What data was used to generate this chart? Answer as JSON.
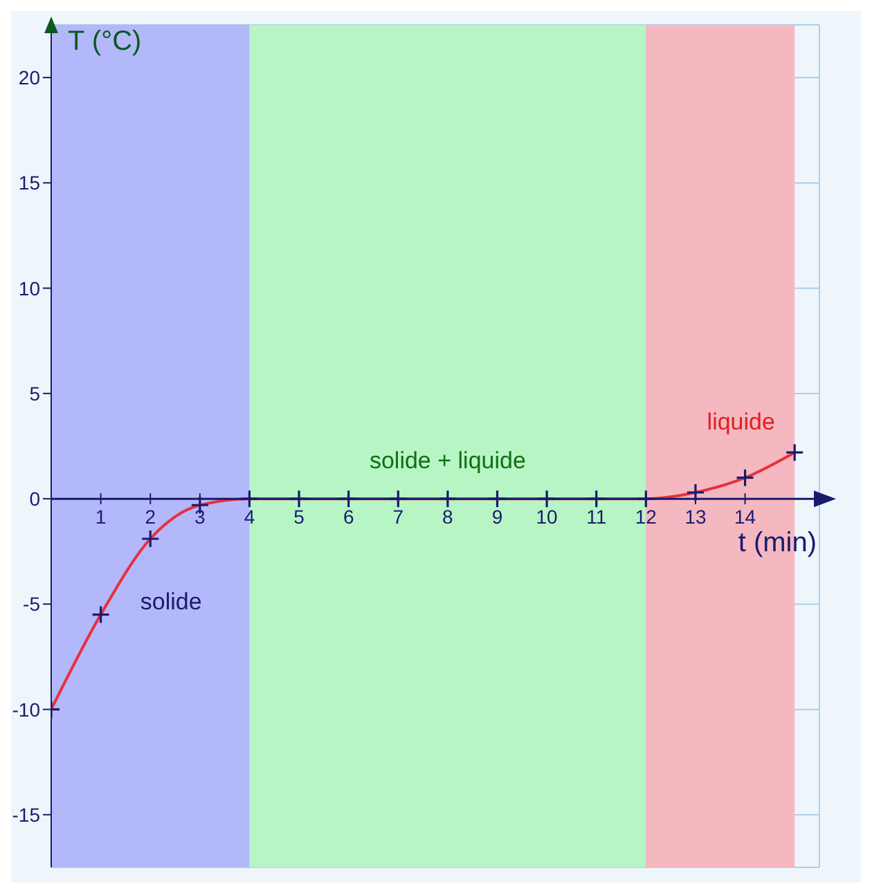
{
  "chart_data": {
    "type": "line",
    "ylabel": "T (°C)",
    "xlabel": "t  (min)",
    "x": [
      0,
      1,
      2,
      3,
      4,
      5,
      6,
      7,
      8,
      9,
      10,
      11,
      12,
      13,
      14,
      15
    ],
    "series": [
      {
        "color": "#e8303a",
        "values": [
          -10,
          -5.5,
          -1.9,
          -0.3,
          0,
          0,
          0,
          0,
          0,
          0,
          0,
          0,
          0,
          0.3,
          1,
          2.2
        ]
      }
    ],
    "xlim": [
      0,
      15.5
    ],
    "ylim": [
      -17.5,
      22.5
    ],
    "xticks": [
      {
        "value": 0,
        "label": null
      },
      1,
      2,
      3,
      4,
      5,
      6,
      7,
      8,
      9,
      10,
      11,
      12,
      13,
      14
    ],
    "yticks": [
      -15,
      -10,
      -5,
      0,
      5,
      10,
      15,
      20
    ],
    "bands": [
      {
        "axis": "x",
        "from": 0,
        "to": 4,
        "color": "#b3b8fa",
        "label": "solide"
      },
      {
        "axis": "x",
        "from": 4,
        "to": 12,
        "color": "#b7f5c5",
        "label": "solide + liquide"
      },
      {
        "axis": "x",
        "from": 12,
        "to": 15,
        "color": "#f5b8c0",
        "label": "liquide"
      }
    ],
    "grid": true,
    "marker": "cross",
    "line_style": "solid",
    "legend": false
  }
}
